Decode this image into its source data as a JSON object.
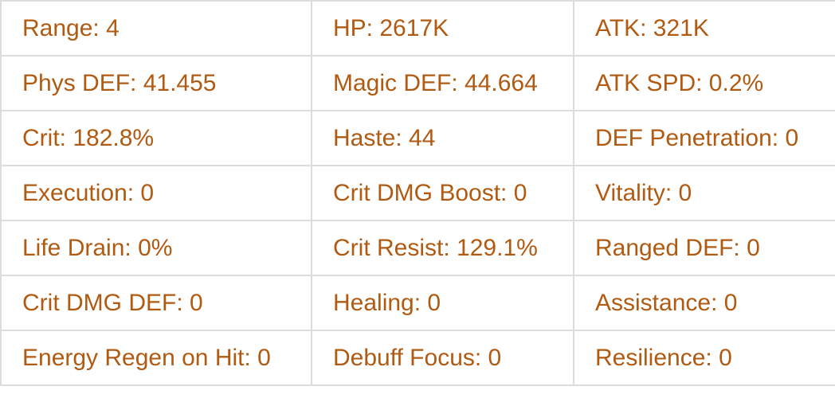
{
  "stats": {
    "rows": [
      [
        "Range: 4",
        "HP: 2617K",
        "ATK: 321K"
      ],
      [
        "Phys DEF: 41.455",
        "Magic DEF: 44.664",
        "ATK SPD: 0.2%"
      ],
      [
        "Crit: 182.8%",
        "Haste: 44",
        "DEF Penetration: 0"
      ],
      [
        "Execution: 0",
        "Crit DMG Boost: 0",
        "Vitality: 0"
      ],
      [
        "Life Drain: 0%",
        "Crit Resist: 129.1%",
        "Ranged DEF: 0"
      ],
      [
        "Crit DMG DEF: 0",
        "Healing: 0",
        "Assistance: 0"
      ],
      [
        "Energy Regen on Hit: 0",
        "Debuff Focus: 0",
        "Resilience: 0"
      ]
    ]
  },
  "colors": {
    "text": "#b05a12",
    "border": "#dcdcdc"
  }
}
